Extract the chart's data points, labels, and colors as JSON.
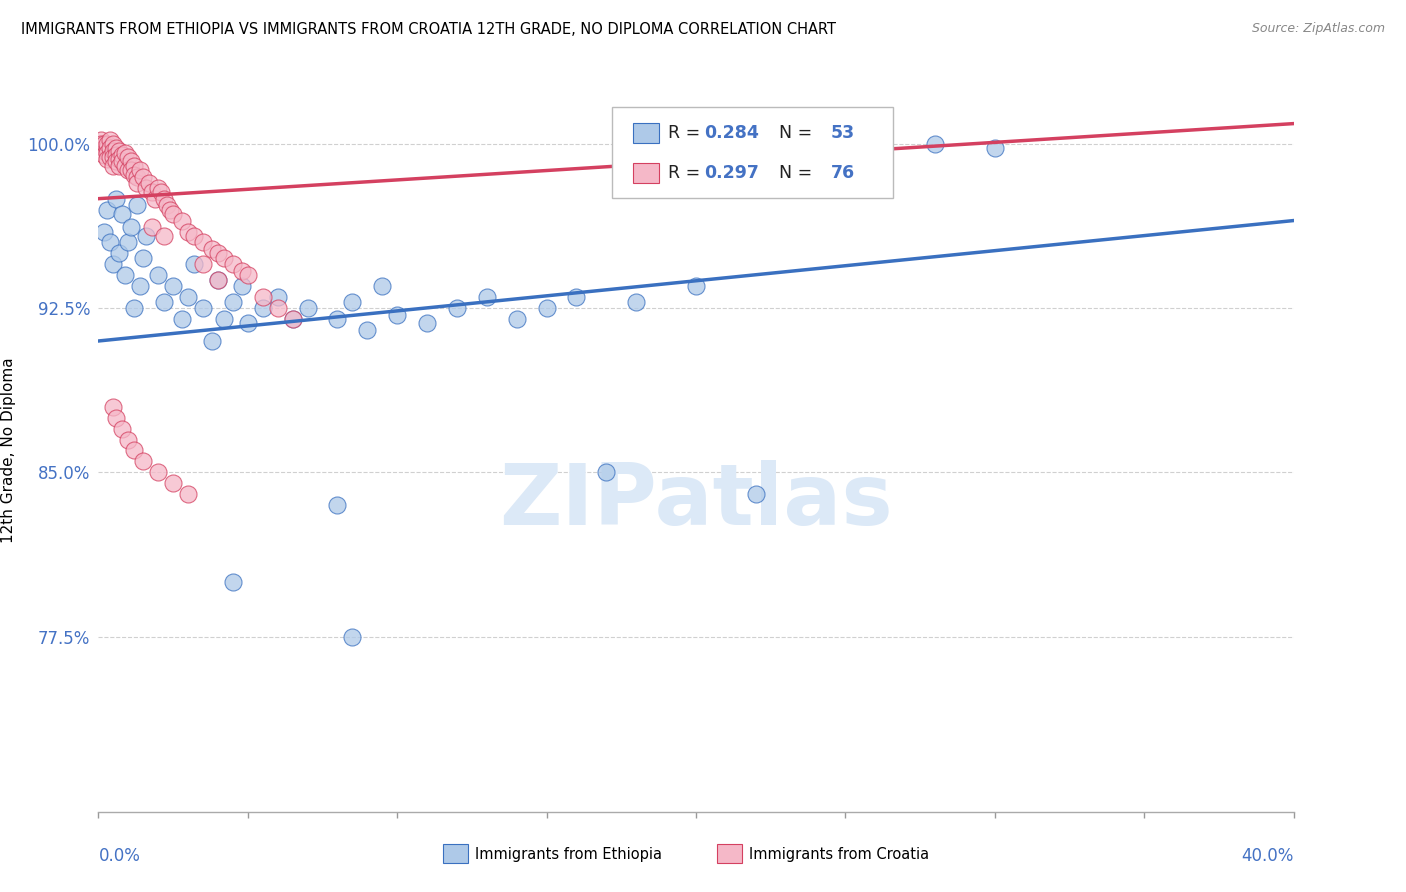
{
  "title": "IMMIGRANTS FROM ETHIOPIA VS IMMIGRANTS FROM CROATIA 12TH GRADE, NO DIPLOMA CORRELATION CHART",
  "source": "Source: ZipAtlas.com",
  "ylabel": "12th Grade, No Diploma",
  "yticks": [
    0.775,
    0.85,
    0.925,
    1.0
  ],
  "ytick_labels": [
    "77.5%",
    "85.0%",
    "92.5%",
    "100.0%"
  ],
  "xlim": [
    0.0,
    0.4
  ],
  "ylim": [
    0.695,
    1.025
  ],
  "r_ethiopia": 0.284,
  "n_ethiopia": 53,
  "r_croatia": 0.297,
  "n_croatia": 76,
  "color_ethiopia": "#aec9e8",
  "color_croatia": "#f5b8c8",
  "line_color_ethiopia": "#3a70c0",
  "line_color_croatia": "#d44060",
  "axis_label_color": "#4472C4",
  "grid_color": "#d0d0d0",
  "watermark_text": "ZIPatlas",
  "watermark_color": "#dce9f7",
  "legend_text_black": "#222222",
  "legend_text_blue": "#4472C4"
}
